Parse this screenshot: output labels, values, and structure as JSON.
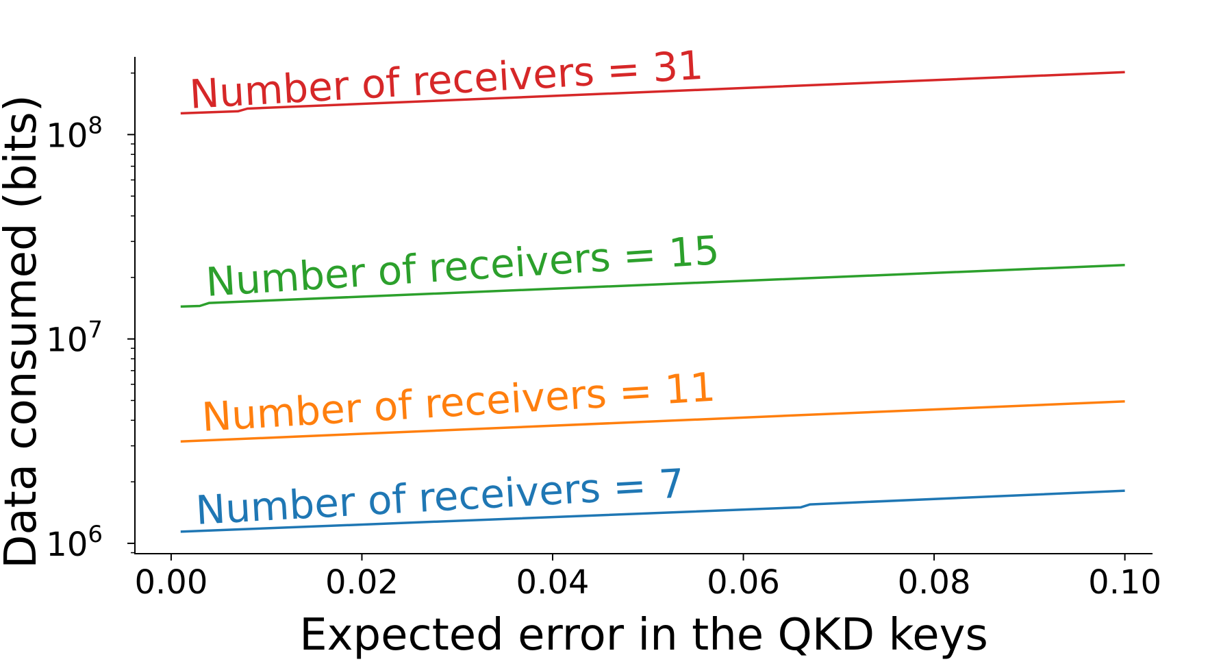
{
  "chart_data": {
    "type": "line",
    "xlabel": "Expected error in the QKD keys",
    "ylabel": "Data consumed (bits)",
    "xlim": [
      -0.0038,
      0.1029
    ],
    "ylim": [
      890000,
      240000000
    ],
    "yscale": "log",
    "grid": false,
    "x_ticks": [
      {
        "value": 0.0,
        "label": "0.00"
      },
      {
        "value": 0.02,
        "label": "0.02"
      },
      {
        "value": 0.04,
        "label": "0.04"
      },
      {
        "value": 0.06,
        "label": "0.06"
      },
      {
        "value": 0.08,
        "label": "0.08"
      },
      {
        "value": 0.1,
        "label": "0.10"
      }
    ],
    "y_ticks": [
      {
        "value": 1000000,
        "base": "10",
        "exp": "6"
      },
      {
        "value": 10000000,
        "base": "10",
        "exp": "7"
      },
      {
        "value": 100000000,
        "base": "10",
        "exp": "8"
      }
    ],
    "series": [
      {
        "name": "Number of receivers = 7",
        "color": "#1f77b4",
        "x": [
          0.001,
          0.066,
          0.067,
          0.1
        ],
        "y": [
          1140000,
          1500000,
          1550000,
          1810000
        ]
      },
      {
        "name": "Number of receivers = 11",
        "color": "#ff7f0e",
        "x": [
          0.001,
          0.1
        ],
        "y": [
          3150000,
          4950000
        ]
      },
      {
        "name": "Number of receivers = 15",
        "color": "#2ca02c",
        "x": [
          0.001,
          0.003,
          0.004,
          0.1
        ],
        "y": [
          14400000,
          14500000,
          15000000,
          23000000
        ]
      },
      {
        "name": "Number of receivers = 31",
        "color": "#d62728",
        "x": [
          0.001,
          0.007,
          0.008,
          0.1
        ],
        "y": [
          127000000,
          130000000,
          134000000,
          202000000
        ]
      }
    ]
  }
}
